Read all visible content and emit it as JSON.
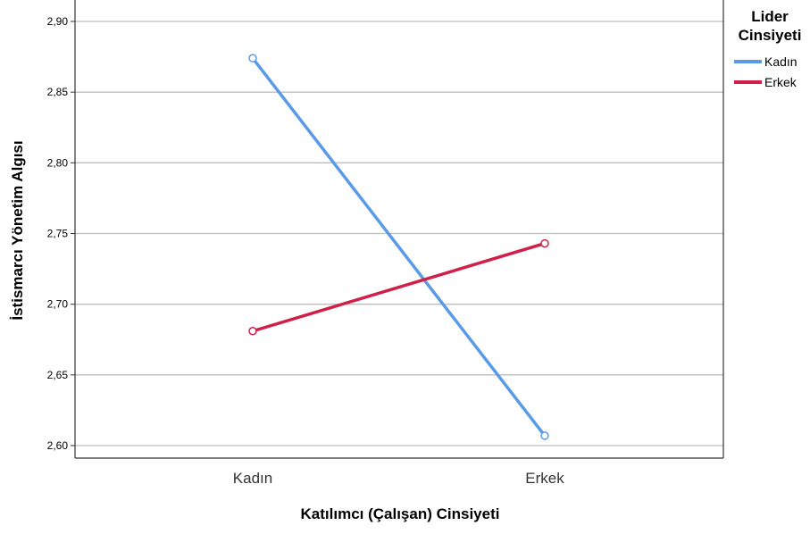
{
  "chart_data": {
    "type": "line",
    "categories": [
      "Kadın",
      "Erkek"
    ],
    "series": [
      {
        "name": "Kadın",
        "values": [
          2.874,
          2.607
        ],
        "color": "#5b9be6"
      },
      {
        "name": "Erkek",
        "values": [
          2.681,
          2.743
        ],
        "color": "#d01f48"
      }
    ],
    "xlabel": "Katılımcı (Çalışan) Cinsiyeti",
    "ylabel": "İstismarcı Yönetim Algısı",
    "ylim": [
      2.59,
      2.92
    ],
    "yticks": [
      2.6,
      2.65,
      2.7,
      2.75,
      2.8,
      2.85,
      2.9
    ],
    "ytick_labels": [
      "2,60",
      "2,65",
      "2,70",
      "2,75",
      "2,80",
      "2,85",
      "2,90"
    ],
    "grid": "horizontal",
    "legend_title": "Lider Cinsiyeti",
    "legend_placement": "top-right"
  }
}
